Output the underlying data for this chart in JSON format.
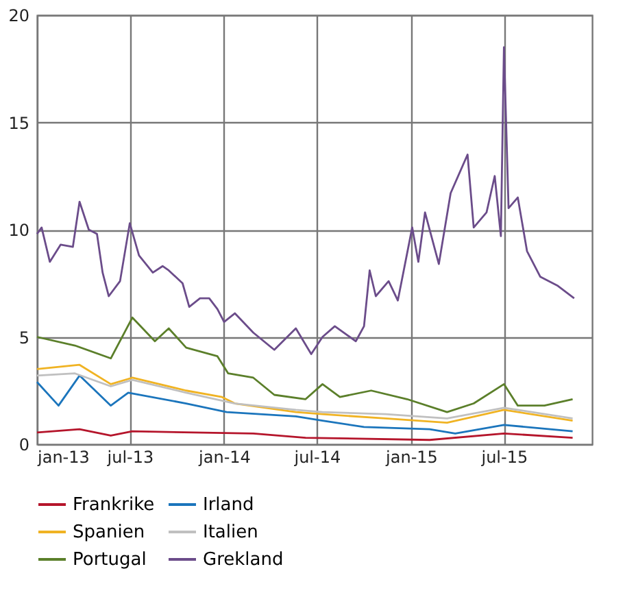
{
  "chart_data": {
    "type": "line",
    "xlim": [
      "2013-01-01",
      "2015-12-20"
    ],
    "ylim": [
      0,
      20
    ],
    "yticks": [
      0,
      5,
      10,
      15,
      20
    ],
    "xticks": [
      {
        "value": "2013-01-01",
        "label": "jan-13"
      },
      {
        "value": "2013-07-01",
        "label": "jul-13"
      },
      {
        "value": "2014-01-01",
        "label": "jan-14"
      },
      {
        "value": "2014-07-01",
        "label": "jul-14"
      },
      {
        "value": "2015-01-01",
        "label": "jan-15"
      },
      {
        "value": "2015-07-01",
        "label": "jul-15"
      }
    ],
    "grid": true,
    "legend": "bottom",
    "line_style": "solid",
    "marker": "none",
    "series": [
      {
        "name": "Frankrike",
        "color": "#b5152b",
        "x": [
          "2013-01-01",
          "2013-03-25",
          "2013-05-25",
          "2013-07-06",
          "2014-02-27",
          "2014-06-09",
          "2015-02-06",
          "2015-07-01",
          "2015-11-12"
        ],
        "values": [
          0.55,
          0.7,
          0.4,
          0.6,
          0.5,
          0.3,
          0.2,
          0.5,
          0.3
        ]
      },
      {
        "name": "Irland",
        "color": "#1b75bc",
        "x": [
          "2013-01-01",
          "2013-02-12",
          "2013-03-25",
          "2013-05-25",
          "2013-06-28",
          "2013-10-19",
          "2014-01-06",
          "2014-05-21",
          "2014-07-12",
          "2014-10-01",
          "2015-02-06",
          "2015-03-28",
          "2015-07-01",
          "2015-11-12"
        ],
        "values": [
          2.9,
          1.8,
          3.2,
          1.8,
          2.4,
          1.9,
          1.5,
          1.3,
          1.1,
          0.8,
          0.7,
          0.5,
          0.9,
          0.6
        ]
      },
      {
        "name": "Spanien",
        "color": "#f0b323",
        "x": [
          "2013-01-01",
          "2013-03-25",
          "2013-05-25",
          "2013-07-06",
          "2013-10-19",
          "2013-12-28",
          "2014-01-22",
          "2014-05-21",
          "2014-07-12",
          "2014-11-12",
          "2015-03-12",
          "2015-07-01",
          "2015-11-12"
        ],
        "values": [
          3.5,
          3.7,
          2.8,
          3.1,
          2.5,
          2.2,
          1.9,
          1.5,
          1.4,
          1.2,
          1.0,
          1.6,
          1.1
        ]
      },
      {
        "name": "Italien",
        "color": "#c0c0c0",
        "x": [
          "2013-01-01",
          "2013-03-16",
          "2013-05-25",
          "2013-07-06",
          "2013-10-19",
          "2014-01-22",
          "2014-05-21",
          "2014-07-12",
          "2014-11-12",
          "2015-03-12",
          "2015-07-01",
          "2015-11-12"
        ],
        "values": [
          3.2,
          3.3,
          2.7,
          3.0,
          2.4,
          1.9,
          1.6,
          1.5,
          1.4,
          1.2,
          1.7,
          1.2
        ]
      },
      {
        "name": "Portugal",
        "color": "#5b7f2a",
        "x": [
          "2013-01-01",
          "2013-03-16",
          "2013-05-25",
          "2013-07-06",
          "2013-08-19",
          "2013-09-15",
          "2013-10-19",
          "2013-12-19",
          "2014-01-09",
          "2014-02-27",
          "2014-04-09",
          "2014-06-09",
          "2014-07-12",
          "2014-08-15",
          "2014-10-15",
          "2014-12-24",
          "2015-03-12",
          "2015-05-03",
          "2015-07-01",
          "2015-07-28",
          "2015-09-18",
          "2015-11-12"
        ],
        "values": [
          5.0,
          4.6,
          4.0,
          5.9,
          4.8,
          5.4,
          4.5,
          4.1,
          3.3,
          3.1,
          2.3,
          2.1,
          2.8,
          2.2,
          2.5,
          2.1,
          1.5,
          1.9,
          2.8,
          1.8,
          1.8,
          2.1
        ]
      },
      {
        "name": "Grekland",
        "color": "#6b4c8a",
        "x": [
          "2013-01-01",
          "2013-01-10",
          "2013-01-26",
          "2013-02-16",
          "2013-03-12",
          "2013-03-25",
          "2013-04-12",
          "2013-04-28",
          "2013-05-09",
          "2013-05-21",
          "2013-06-12",
          "2013-07-01",
          "2013-07-19",
          "2013-08-15",
          "2013-09-03",
          "2013-09-15",
          "2013-10-12",
          "2013-10-25",
          "2013-11-15",
          "2013-12-03",
          "2013-12-19",
          "2014-01-01",
          "2014-01-22",
          "2014-02-27",
          "2014-04-09",
          "2014-05-21",
          "2014-06-20",
          "2014-07-12",
          "2014-08-05",
          "2014-09-15",
          "2014-10-01",
          "2014-10-12",
          "2014-10-24",
          "2014-11-18",
          "2014-12-06",
          "2015-01-03",
          "2015-01-15",
          "2015-01-28",
          "2015-02-24",
          "2015-03-19",
          "2015-04-21",
          "2015-05-03",
          "2015-05-28",
          "2015-06-13",
          "2015-06-25",
          "2015-07-01",
          "2015-07-10",
          "2015-07-28",
          "2015-08-15",
          "2015-09-10",
          "2015-10-13",
          "2015-11-15"
        ],
        "values": [
          9.8,
          10.1,
          8.5,
          9.3,
          9.2,
          11.3,
          10.0,
          9.8,
          8.0,
          6.9,
          7.6,
          10.3,
          8.8,
          8.0,
          8.3,
          8.1,
          7.5,
          6.4,
          6.8,
          6.8,
          6.3,
          5.7,
          6.1,
          5.2,
          4.4,
          5.4,
          4.2,
          5.0,
          5.5,
          4.8,
          5.5,
          8.1,
          6.9,
          7.6,
          6.7,
          10.1,
          8.5,
          10.8,
          8.4,
          11.7,
          13.5,
          10.1,
          10.8,
          12.5,
          9.7,
          18.5,
          11.0,
          11.5,
          9.0,
          7.8,
          7.4,
          6.8
        ]
      }
    ]
  }
}
